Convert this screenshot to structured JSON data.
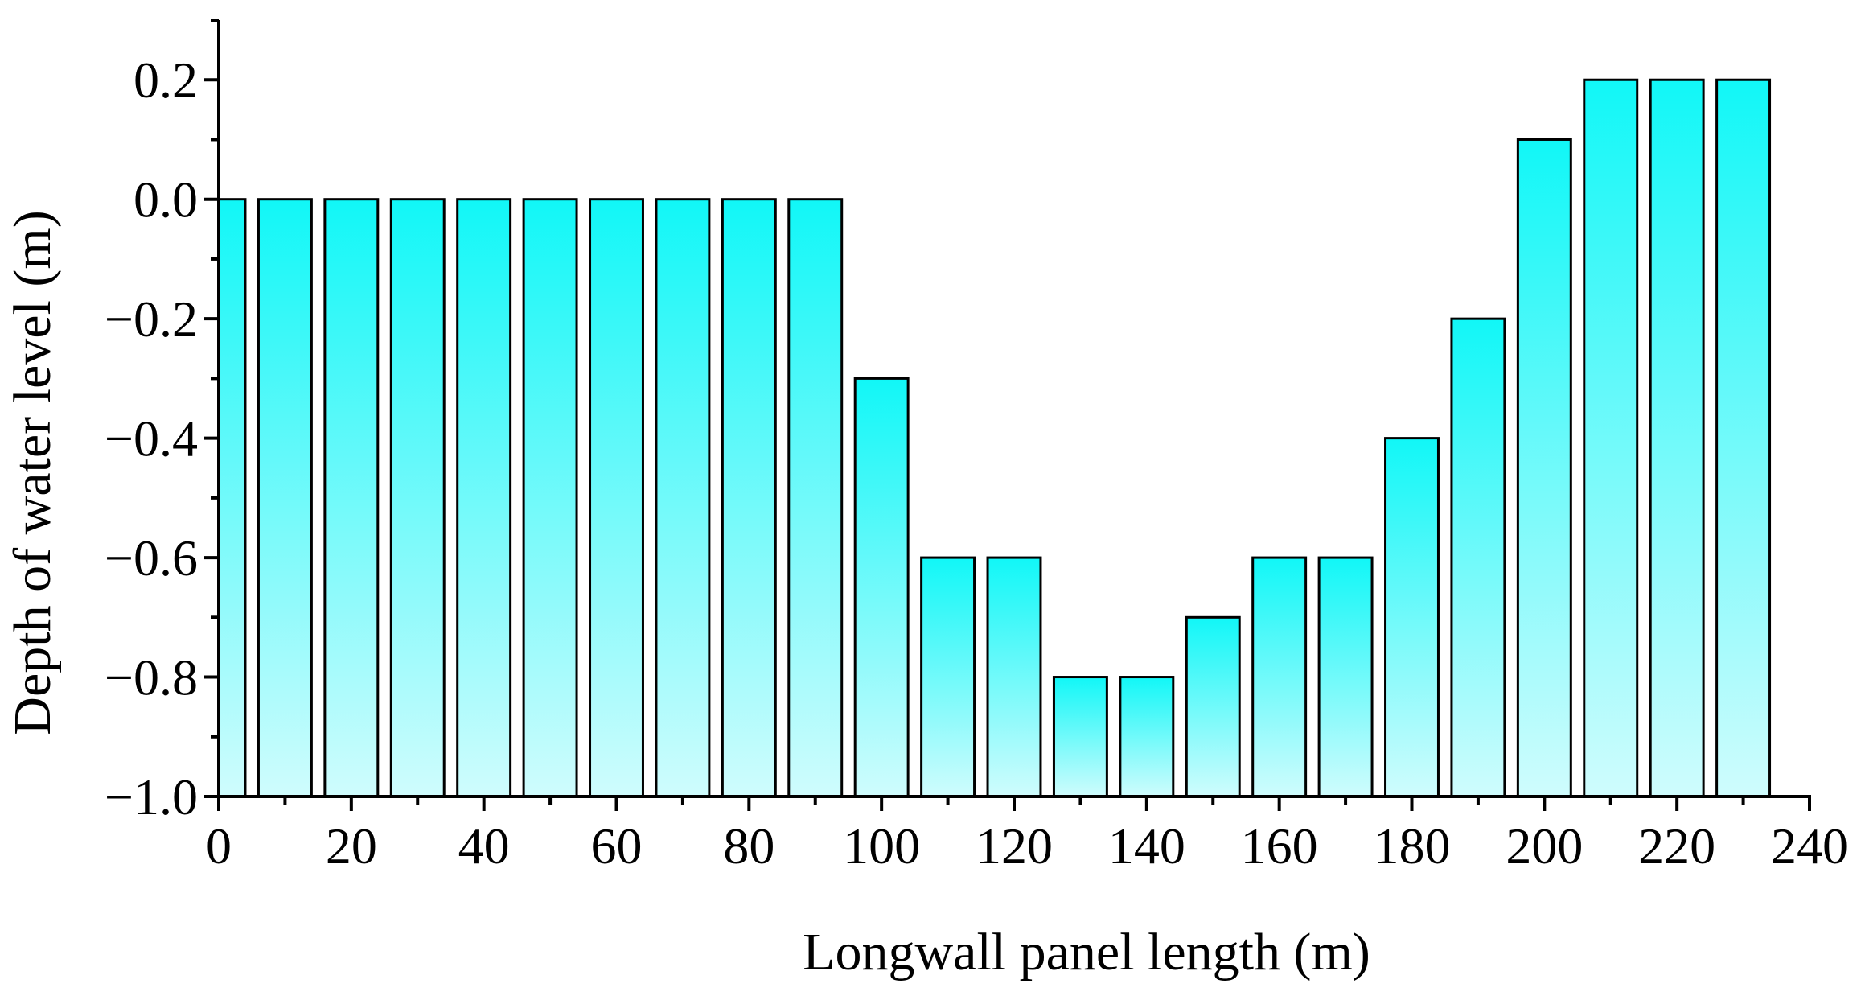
{
  "chart_data": {
    "type": "bar",
    "title": "",
    "xlabel": "Longwall panel length (m)",
    "ylabel": "Depth of water level (m)",
    "x": [
      0,
      10,
      20,
      30,
      40,
      50,
      60,
      70,
      80,
      90,
      100,
      110,
      120,
      130,
      140,
      150,
      160,
      170,
      180,
      190,
      200,
      210,
      220,
      230
    ],
    "values": [
      0.0,
      0.0,
      0.0,
      0.0,
      0.0,
      0.0,
      0.0,
      0.0,
      0.0,
      0.0,
      -0.3,
      -0.6,
      -0.6,
      -0.8,
      -0.8,
      -0.7,
      -0.6,
      -0.6,
      -0.4,
      -0.2,
      0.1,
      0.2,
      0.2,
      0.2
    ],
    "bar_width": 8,
    "xlim": [
      0,
      240
    ],
    "ylim": [
      -1.0,
      0.3
    ],
    "xticks": [
      0,
      20,
      40,
      60,
      80,
      100,
      120,
      140,
      160,
      180,
      200,
      220,
      240
    ],
    "xtick_labels": [
      "0",
      "20",
      "40",
      "60",
      "80",
      "100",
      "120",
      "140",
      "160",
      "180",
      "200",
      "220",
      "240"
    ],
    "yticks": [
      -1.0,
      -0.8,
      -0.6,
      -0.4,
      -0.2,
      0.0,
      0.2
    ],
    "ytick_labels": [
      "−1.0",
      "−0.8",
      "−0.6",
      "−0.4",
      "−0.2",
      "0.0",
      "0.2"
    ],
    "grid": false,
    "legend": "none",
    "colors": {
      "bar_top": "#11f7f7",
      "bar_bottom": "#cffcfd",
      "bar_edge": "#000000"
    }
  }
}
